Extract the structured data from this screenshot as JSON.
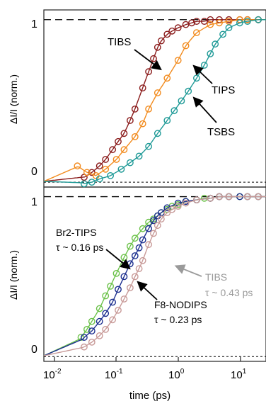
{
  "chart_data": [
    {
      "type": "scatter",
      "panel": "top",
      "xscale": "log",
      "xlim": [
        0.01,
        40
      ],
      "ylim": [
        -0.03,
        1.06
      ],
      "ylabel": "ΔI/I (norm.)",
      "yticks": [
        "0",
        "1"
      ],
      "reference_lines": [
        0,
        1
      ],
      "series": [
        {
          "name": "TIBS",
          "color": "#8b1c1c",
          "fit_line": true,
          "x": [
            0.045,
            0.06,
            0.08,
            0.1,
            0.13,
            0.16,
            0.2,
            0.25,
            0.3,
            0.4,
            0.5,
            0.6,
            0.7,
            0.8,
            1.0,
            1.2,
            1.5,
            2.0,
            2.5,
            3.0,
            4.0,
            5.0,
            7.0,
            10.0,
            15.0,
            20.0,
            30.0
          ],
          "y": [
            0.03,
            0.06,
            0.1,
            0.14,
            0.2,
            0.25,
            0.3,
            0.38,
            0.45,
            0.58,
            0.68,
            0.76,
            0.83,
            0.87,
            0.91,
            0.93,
            0.95,
            0.97,
            0.98,
            0.99,
            0.99,
            1.0,
            1.0,
            1.0,
            1.0,
            1.0,
            1.0
          ]
        },
        {
          "name": "TIPS",
          "color": "#f28b1e",
          "fit_line": true,
          "x": [
            0.035,
            0.05,
            0.07,
            0.1,
            0.15,
            0.2,
            0.3,
            0.4,
            0.5,
            0.7,
            1.0,
            1.5,
            2.0,
            3.0,
            5.0,
            7.0,
            10.0,
            15.0,
            20.0,
            30.0
          ],
          "y": [
            0.1,
            0.06,
            0.04,
            0.08,
            0.14,
            0.2,
            0.28,
            0.36,
            0.45,
            0.55,
            0.64,
            0.75,
            0.84,
            0.92,
            0.97,
            0.98,
            0.99,
            1.0,
            1.0,
            1.0
          ]
        },
        {
          "name": "TSBS",
          "color": "#1f9a97",
          "fit_line": true,
          "x": [
            0.045,
            0.06,
            0.08,
            0.12,
            0.18,
            0.25,
            0.35,
            0.5,
            0.7,
            1.0,
            1.3,
            1.7,
            2.2,
            3.0,
            4.0,
            5.0,
            6.0,
            8.0,
            10.0,
            15.0,
            20.0,
            30.0
          ],
          "y": [
            -0.01,
            0.0,
            0.02,
            0.04,
            0.08,
            0.12,
            0.16,
            0.22,
            0.3,
            0.38,
            0.44,
            0.5,
            0.56,
            0.64,
            0.72,
            0.79,
            0.85,
            0.91,
            0.95,
            0.98,
            0.99,
            1.0
          ]
        }
      ],
      "annotations": [
        {
          "text": "TIBS"
        },
        {
          "text": "TIPS"
        },
        {
          "text": "TSBS"
        }
      ]
    },
    {
      "type": "scatter",
      "panel": "bottom",
      "xscale": "log",
      "xlim": [
        0.01,
        40
      ],
      "ylim": [
        -0.03,
        1.06
      ],
      "xlabel": "time (ps)",
      "ylabel": "ΔI/I (norm.)",
      "xticks": [
        "10-2",
        "10-1",
        "100",
        "101"
      ],
      "yticks": [
        "0",
        "1"
      ],
      "reference_lines": [
        0,
        1
      ],
      "series": [
        {
          "name": "Br2-TIPS",
          "color": "#6cc24a",
          "fit_line": true,
          "x": [
            0.04,
            0.05,
            0.06,
            0.08,
            0.1,
            0.12,
            0.15,
            0.2,
            0.25,
            0.3,
            0.4,
            0.5,
            0.6,
            0.7,
            0.8,
            1.0,
            1.2,
            1.5,
            2.0,
            3.0,
            4.0,
            5.0,
            7.0,
            10.0,
            15.0,
            20.0,
            30.0
          ],
          "y": [
            0.12,
            0.17,
            0.22,
            0.3,
            0.38,
            0.44,
            0.52,
            0.62,
            0.69,
            0.74,
            0.8,
            0.84,
            0.86,
            0.88,
            0.9,
            0.92,
            0.94,
            0.95,
            0.97,
            0.98,
            0.99,
            0.99,
            1.0,
            1.0,
            1.0,
            1.0,
            1.0
          ]
        },
        {
          "name": "F8-NODIPS",
          "color": "#1c2f8f",
          "fit_line": true,
          "x": [
            0.045,
            0.06,
            0.08,
            0.1,
            0.13,
            0.16,
            0.2,
            0.25,
            0.3,
            0.35,
            0.4,
            0.5,
            0.6,
            0.7,
            0.8,
            1.0,
            1.5,
            2.0,
            3.0,
            5.0,
            7.0,
            10.0,
            15.0,
            20.0,
            30.0
          ],
          "y": [
            0.12,
            0.16,
            0.22,
            0.27,
            0.34,
            0.42,
            0.5,
            0.58,
            0.63,
            0.68,
            0.73,
            0.8,
            0.85,
            0.88,
            0.9,
            0.93,
            0.96,
            0.97,
            0.98,
            0.99,
            1.0,
            1.0,
            1.0,
            1.0,
            1.0
          ]
        },
        {
          "name": "TIBS",
          "color": "#c89a98",
          "fit_line": true,
          "x": [
            0.045,
            0.06,
            0.08,
            0.1,
            0.13,
            0.16,
            0.2,
            0.25,
            0.3,
            0.35,
            0.4,
            0.5,
            0.6,
            0.7,
            0.8,
            1.0,
            1.2,
            1.5,
            2.0,
            3.0,
            5.0,
            7.0,
            10.0,
            20.0,
            30.0
          ],
          "y": [
            0.06,
            0.09,
            0.13,
            0.17,
            0.23,
            0.29,
            0.36,
            0.43,
            0.5,
            0.55,
            0.6,
            0.7,
            0.77,
            0.82,
            0.86,
            0.9,
            0.92,
            0.94,
            0.96,
            0.98,
            0.99,
            1.0,
            1.0,
            1.0,
            1.0
          ]
        }
      ],
      "annotations": [
        {
          "lines": [
            "Br2-TIPS",
            "τ ~ 0.16 ps"
          ]
        },
        {
          "lines": [
            "F8-NODIPS",
            "τ ~ 0.23 ps"
          ]
        },
        {
          "lines": [
            "TIBS",
            "τ ~ 0.43 ps"
          ],
          "color": "#9a9a9a"
        }
      ]
    }
  ]
}
